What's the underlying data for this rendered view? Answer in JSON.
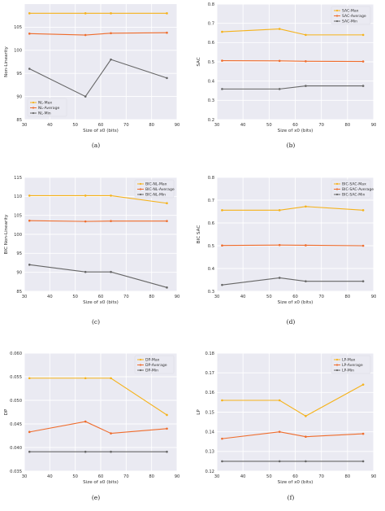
{
  "colors": {
    "max": "#f5b21a",
    "average": "#ef6c2c",
    "min": "#666666",
    "background": "#eaeaf2",
    "grid": "#ffffff"
  },
  "chart_data": [
    {
      "panel": "(a)",
      "type": "line",
      "xlabel": "Size of x0 (bits)",
      "ylabel": "Non-Linearity",
      "xlim": [
        30,
        90
      ],
      "ylim": [
        85,
        110
      ],
      "xticks": [
        30,
        40,
        50,
        60,
        70,
        80,
        90
      ],
      "yticks": [
        85,
        90,
        95,
        100,
        105
      ],
      "x": [
        32,
        54,
        64,
        86
      ],
      "legend_position": "bottom-left",
      "series": [
        {
          "name": "NL-Max",
          "color": "max",
          "values": [
            108,
            108,
            108,
            108
          ]
        },
        {
          "name": "NL-Average",
          "color": "average",
          "values": [
            103.6,
            103.3,
            103.7,
            103.8
          ]
        },
        {
          "name": "NL-Min",
          "color": "min",
          "values": [
            96,
            90,
            98,
            94
          ]
        }
      ],
      "ytick_labels": [
        "85",
        "90",
        "95",
        "100",
        "105"
      ]
    },
    {
      "panel": "(b)",
      "type": "line",
      "xlabel": "Size of x0 (bits)",
      "ylabel": "SAC",
      "xlim": [
        30,
        90
      ],
      "ylim": [
        0.2,
        0.8
      ],
      "xticks": [
        30,
        40,
        50,
        60,
        70,
        80,
        90
      ],
      "yticks": [
        0.2,
        0.3,
        0.4,
        0.5,
        0.6,
        0.7,
        0.8
      ],
      "x": [
        32,
        54,
        64,
        86
      ],
      "legend_position": "top-right",
      "series": [
        {
          "name": "SAC-Max",
          "color": "max",
          "values": [
            0.656,
            0.671,
            0.64,
            0.64
          ]
        },
        {
          "name": "SAC-Average",
          "color": "average",
          "values": [
            0.506,
            0.505,
            0.503,
            0.502
          ]
        },
        {
          "name": "SAC-Min",
          "color": "min",
          "values": [
            0.359,
            0.359,
            0.375,
            0.375
          ]
        }
      ],
      "ytick_labels": [
        "0.2",
        "0.3",
        "0.4",
        "0.5",
        "0.6",
        "0.7",
        "0.8"
      ]
    },
    {
      "panel": "(c)",
      "type": "line",
      "xlabel": "Size of x0 (bits)",
      "ylabel": "BIC Non-Linearity",
      "xlim": [
        30,
        90
      ],
      "ylim": [
        85,
        115
      ],
      "xticks": [
        30,
        40,
        50,
        60,
        70,
        80,
        90
      ],
      "yticks": [
        85,
        90,
        95,
        100,
        105,
        110,
        115
      ],
      "x": [
        32,
        54,
        64,
        86
      ],
      "legend_position": "top-right",
      "series": [
        {
          "name": "BIC-NL-Max",
          "color": "max",
          "values": [
            110.2,
            110.2,
            110.2,
            108.2
          ]
        },
        {
          "name": "BIC-NL-Average",
          "color": "average",
          "values": [
            103.6,
            103.4,
            103.5,
            103.5
          ]
        },
        {
          "name": "BIC-NL-Min",
          "color": "min",
          "values": [
            92,
            90.1,
            90.1,
            86
          ]
        }
      ],
      "ytick_labels": [
        "85",
        "90",
        "95",
        "100",
        "105",
        "110",
        "115"
      ]
    },
    {
      "panel": "(d)",
      "type": "line",
      "xlabel": "Size of x0 (bits)",
      "ylabel": "BIC SAC",
      "xlim": [
        30,
        90
      ],
      "ylim": [
        0.3,
        0.8
      ],
      "xticks": [
        30,
        40,
        50,
        60,
        70,
        80,
        90
      ],
      "yticks": [
        0.3,
        0.4,
        0.5,
        0.6,
        0.7,
        0.8
      ],
      "x": [
        32,
        54,
        64,
        86
      ],
      "legend_position": "top-right",
      "series": [
        {
          "name": "BIC-SAC-Max",
          "color": "max",
          "values": [
            0.656,
            0.656,
            0.672,
            0.656
          ]
        },
        {
          "name": "BIC-SAC-Average",
          "color": "average",
          "values": [
            0.501,
            0.503,
            0.502,
            0.5
          ]
        },
        {
          "name": "BIC-SAC-Min",
          "color": "min",
          "values": [
            0.328,
            0.359,
            0.344,
            0.344
          ]
        }
      ],
      "ytick_labels": [
        "0.3",
        "0.4",
        "0.5",
        "0.6",
        "0.7",
        "0.8"
      ]
    },
    {
      "panel": "(e)",
      "type": "line",
      "xlabel": "Size of x0 (bits)",
      "ylabel": "DP",
      "xlim": [
        30,
        90
      ],
      "ylim": [
        0.035,
        0.06
      ],
      "xticks": [
        30,
        40,
        50,
        60,
        70,
        80,
        90
      ],
      "yticks": [
        0.035,
        0.04,
        0.045,
        0.05,
        0.055,
        0.06
      ],
      "x": [
        32,
        54,
        64,
        86
      ],
      "legend_position": "top-right",
      "series": [
        {
          "name": "DP-Max",
          "color": "max",
          "values": [
            0.0547,
            0.0547,
            0.0547,
            0.0469
          ]
        },
        {
          "name": "DP-Average",
          "color": "average",
          "values": [
            0.0433,
            0.0455,
            0.043,
            0.044
          ]
        },
        {
          "name": "DP-Min",
          "color": "min",
          "values": [
            0.0391,
            0.0391,
            0.0391,
            0.0391
          ]
        }
      ],
      "ytick_labels": [
        "0.035",
        "0.040",
        "0.045",
        "0.050",
        "0.055",
        "0.060"
      ]
    },
    {
      "panel": "(f)",
      "type": "line",
      "xlabel": "Size of x0 (bits)",
      "ylabel": "LP",
      "xlim": [
        30,
        90
      ],
      "ylim": [
        0.12,
        0.18
      ],
      "xticks": [
        30,
        40,
        50,
        60,
        70,
        80,
        90
      ],
      "yticks": [
        0.12,
        0.13,
        0.14,
        0.15,
        0.16,
        0.17,
        0.18
      ],
      "x": [
        32,
        54,
        64,
        86
      ],
      "legend_position": "top-right",
      "series": [
        {
          "name": "LP-Max",
          "color": "max",
          "values": [
            0.156,
            0.156,
            0.148,
            0.164
          ]
        },
        {
          "name": "LP-Average",
          "color": "average",
          "values": [
            0.1365,
            0.14,
            0.1375,
            0.139
          ]
        },
        {
          "name": "LP-Min",
          "color": "min",
          "values": [
            0.125,
            0.125,
            0.125,
            0.125
          ]
        }
      ],
      "ytick_labels": [
        "0.12",
        "0.13",
        "0.14",
        "0.15",
        "0.16",
        "0.17",
        "0.18"
      ]
    }
  ]
}
